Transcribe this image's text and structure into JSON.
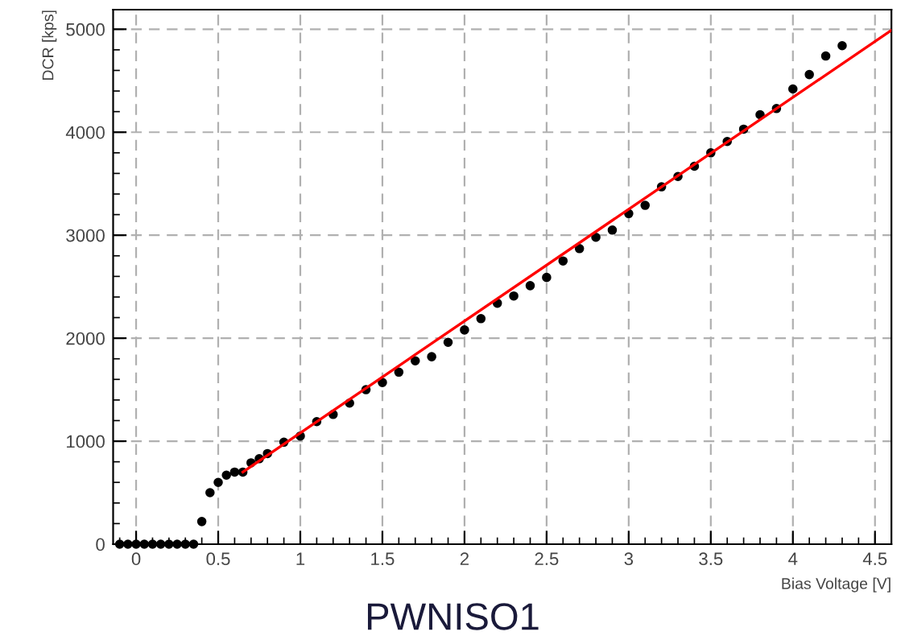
{
  "chart_data": {
    "type": "scatter",
    "title": "PWNISO1",
    "xlabel": "Bias Voltage [V]",
    "ylabel": "DCR [kps]",
    "xlim": [
      -0.14,
      4.6
    ],
    "ylim": [
      0,
      5190
    ],
    "xticks": [
      0,
      0.5,
      1,
      1.5,
      2,
      2.5,
      3,
      3.5,
      4,
      4.5
    ],
    "yticks": [
      0,
      1000,
      2000,
      3000,
      4000,
      5000
    ],
    "grid": true,
    "series": [
      {
        "color": "#000000",
        "marker": "circle",
        "x": [
          -0.1,
          -0.05,
          0,
          0.05,
          0.1,
          0.15,
          0.2,
          0.25,
          0.3,
          0.35,
          0.4,
          0.45,
          0.5,
          0.55,
          0.6,
          0.65,
          0.7,
          0.75,
          0.8,
          0.9,
          1.0,
          1.1,
          1.2,
          1.3,
          1.4,
          1.5,
          1.6,
          1.7,
          1.8,
          1.9,
          2.0,
          2.1,
          2.2,
          2.3,
          2.4,
          2.5,
          2.6,
          2.7,
          2.8,
          2.9,
          3.0,
          3.1,
          3.2,
          3.3,
          3.4,
          3.5,
          3.6,
          3.7,
          3.8,
          3.9,
          4.0,
          4.1,
          4.2,
          4.3
        ],
        "values": [
          0,
          0,
          0,
          0,
          0,
          0,
          0,
          0,
          0,
          0,
          220,
          500,
          600,
          670,
          700,
          700,
          790,
          830,
          880,
          990,
          1050,
          1190,
          1260,
          1370,
          1500,
          1570,
          1670,
          1780,
          1820,
          1960,
          2080,
          2190,
          2340,
          2410,
          2510,
          2590,
          2750,
          2870,
          2980,
          3050,
          3210,
          3290,
          3470,
          3570,
          3670,
          3800,
          3910,
          4030,
          4170,
          4230,
          4420,
          4560,
          4740,
          4840
        ]
      },
      {
        "type": "line",
        "marker": "none",
        "color": "#ff0000",
        "x": [
          0.65,
          4.6
        ],
        "values": [
          700,
          4990
        ]
      }
    ]
  }
}
